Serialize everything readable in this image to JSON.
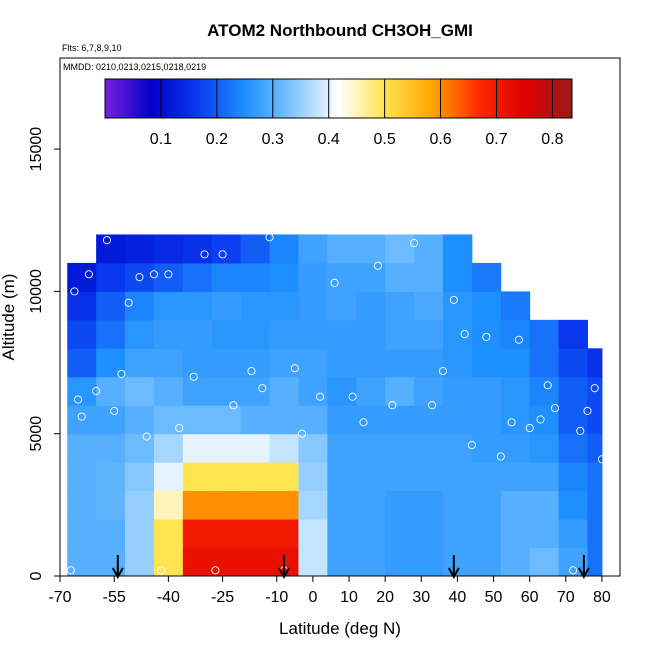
{
  "chart_data": {
    "type": "heatmap",
    "title": "ATOM2 Northbound CH3OH_GMI",
    "flights": "Flts: 6,7,8,9,10",
    "dates": "MMDD: 0210,0213,0215,0218,0219",
    "x_label": "Latitude (deg N)",
    "y_label": "Altitude (m)",
    "xlim": [
      -70,
      85
    ],
    "ylim": [
      0,
      18200
    ],
    "xticks": [
      -70,
      -55,
      -40,
      -25,
      -10,
      0,
      10,
      20,
      30,
      40,
      50,
      60,
      70,
      80
    ],
    "yticks": [
      0,
      5000,
      10000,
      15000
    ],
    "lat_edges": [
      -68,
      -60,
      -52,
      -44,
      -36,
      -28,
      -20,
      -12,
      -4,
      4,
      12,
      20,
      28,
      36,
      44,
      52,
      60,
      68,
      76,
      80
    ],
    "alt_edges": [
      0,
      1000,
      2000,
      3000,
      4000,
      5000,
      6000,
      7000,
      8000,
      9000,
      10000,
      11000,
      12000
    ],
    "z": [
      [
        0.3,
        0.3,
        0.35,
        0.5,
        0.72,
        0.72,
        0.72,
        0.72,
        0.38,
        0.28,
        0.28,
        0.27,
        0.27,
        0.28,
        0.28,
        0.3,
        0.32,
        0.28,
        0.22
      ],
      [
        0.3,
        0.3,
        0.35,
        0.5,
        0.7,
        0.7,
        0.7,
        0.7,
        0.38,
        0.28,
        0.28,
        0.27,
        0.27,
        0.28,
        0.28,
        0.3,
        0.3,
        0.27,
        0.22
      ],
      [
        0.3,
        0.31,
        0.35,
        0.45,
        0.6,
        0.6,
        0.6,
        0.6,
        0.36,
        0.28,
        0.28,
        0.27,
        0.27,
        0.28,
        0.28,
        0.3,
        0.3,
        0.25,
        0.22
      ],
      [
        0.3,
        0.31,
        0.34,
        0.4,
        0.5,
        0.5,
        0.5,
        0.5,
        0.35,
        0.28,
        0.28,
        0.28,
        0.28,
        0.28,
        0.28,
        0.28,
        0.28,
        0.24,
        0.22
      ],
      [
        0.3,
        0.3,
        0.32,
        0.36,
        0.4,
        0.4,
        0.4,
        0.38,
        0.34,
        0.28,
        0.28,
        0.28,
        0.28,
        0.28,
        0.27,
        0.27,
        0.26,
        0.22,
        0.2
      ],
      [
        0.28,
        0.28,
        0.3,
        0.32,
        0.32,
        0.32,
        0.3,
        0.3,
        0.3,
        0.27,
        0.27,
        0.27,
        0.27,
        0.27,
        0.27,
        0.26,
        0.25,
        0.2,
        0.18
      ],
      [
        0.26,
        0.3,
        0.32,
        0.3,
        0.28,
        0.28,
        0.28,
        0.3,
        0.28,
        0.26,
        0.28,
        0.3,
        0.28,
        0.27,
        0.27,
        0.26,
        0.24,
        0.2,
        0.18
      ],
      [
        0.2,
        0.25,
        0.28,
        0.28,
        0.27,
        0.27,
        0.27,
        0.28,
        0.28,
        0.27,
        0.27,
        0.27,
        0.27,
        0.26,
        0.25,
        0.25,
        0.22,
        0.18,
        0.15
      ],
      [
        0.18,
        0.22,
        0.26,
        0.27,
        0.27,
        0.26,
        0.26,
        0.27,
        0.27,
        0.27,
        0.27,
        0.28,
        0.28,
        0.26,
        0.25,
        0.24,
        0.22,
        0.16,
        null
      ],
      [
        0.15,
        0.2,
        0.24,
        0.26,
        0.26,
        0.27,
        0.26,
        0.26,
        0.27,
        0.28,
        0.27,
        0.28,
        0.29,
        0.26,
        0.25,
        0.23,
        null,
        null,
        null
      ],
      [
        0.12,
        0.16,
        0.18,
        0.2,
        0.22,
        0.24,
        0.24,
        0.25,
        0.27,
        0.28,
        0.28,
        0.3,
        0.3,
        0.25,
        0.23,
        null,
        null,
        null,
        null
      ],
      [
        null,
        0.12,
        0.13,
        0.14,
        0.15,
        0.17,
        0.2,
        0.24,
        0.28,
        0.3,
        0.3,
        0.32,
        0.3,
        0.25,
        null,
        null,
        null,
        null,
        null
      ]
    ],
    "colormap": [
      "#7a1fe0",
      "#0000c8",
      "#0a3cf0",
      "#1e90ff",
      "#7cc4ff",
      "#ffffff",
      "#ffe44d",
      "#ffa500",
      "#ff2a00",
      "#dd0000",
      "#9b1a1a"
    ],
    "colorbar": {
      "lim": [
        0,
        0.835
      ],
      "ticks": [
        0.1,
        0.2,
        0.3,
        0.4,
        0.5,
        0.6,
        0.7,
        0.8
      ]
    },
    "points": {
      "x": [
        -67,
        -66,
        -65,
        -64,
        -62,
        -60,
        -57,
        -55,
        -53,
        -51,
        -48,
        -46,
        -44,
        -42,
        -40,
        -37,
        -33,
        -30,
        -27,
        -25,
        -22,
        -17,
        -14,
        -12,
        -8,
        -5,
        -3,
        2,
        6,
        11,
        14,
        18,
        22,
        28,
        33,
        36,
        39,
        42,
        44,
        48,
        52,
        55,
        57,
        60,
        63,
        65,
        67,
        70,
        72,
        74,
        76,
        78,
        80
      ],
      "y": [
        200,
        10000,
        6200,
        5600,
        10600,
        6500,
        11800,
        5800,
        7100,
        9600,
        10500,
        4900,
        10600,
        200,
        10600,
        5200,
        7000,
        11300,
        200,
        11300,
        6000,
        7200,
        6600,
        11900,
        200,
        7300,
        5000,
        6300,
        10300,
        6300,
        5400,
        10900,
        6000,
        11700,
        6000,
        7200,
        9700,
        8500,
        4600,
        8400,
        4200,
        5400,
        8300,
        5200,
        5500,
        6700,
        5900,
        9300,
        200,
        5100,
        5800,
        6600,
        4100
      ]
    },
    "arrows": [
      -54,
      -8,
      39,
      75
    ]
  }
}
